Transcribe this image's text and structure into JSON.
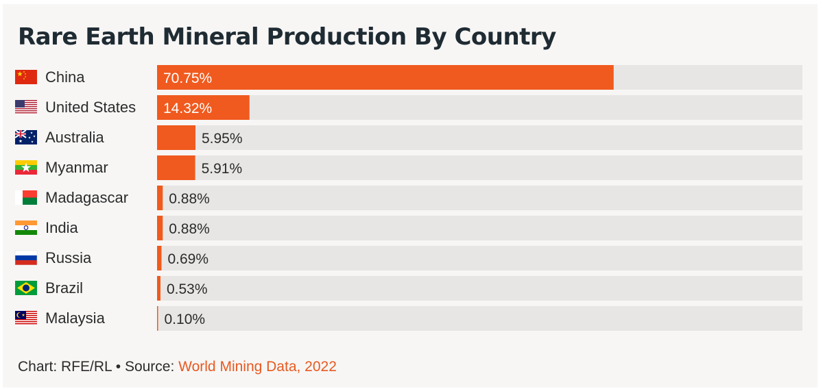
{
  "title": "Rare Earth Mineral Production By Country",
  "footer": {
    "prefix": "Chart: RFE/RL • Source: ",
    "source_link": "World Mining Data, 2022"
  },
  "colors": {
    "bar": "#f05a1e",
    "track": "#e7e6e5",
    "label_text": "#2b2b2b",
    "inside_value_text": "#ffffff"
  },
  "chart_data": {
    "type": "bar",
    "orientation": "horizontal",
    "unit": "%",
    "xlim": [
      0,
      100
    ],
    "grid": false,
    "categories": [
      "China",
      "United States",
      "Australia",
      "Myanmar",
      "Madagascar",
      "India",
      "Russia",
      "Brazil",
      "Malaysia"
    ],
    "values": [
      70.75,
      14.32,
      5.95,
      5.91,
      0.88,
      0.88,
      0.69,
      0.53,
      0.1
    ],
    "value_labels": [
      "70.75%",
      "14.32%",
      "5.95%",
      "5.91%",
      "0.88%",
      "0.88%",
      "0.69%",
      "0.53%",
      "0.10%"
    ],
    "flags": [
      "china-flag-icon",
      "us-flag-icon",
      "australia-flag-icon",
      "myanmar-flag-icon",
      "madagascar-flag-icon",
      "india-flag-icon",
      "russia-flag-icon",
      "brazil-flag-icon",
      "malaysia-flag-icon"
    ]
  }
}
